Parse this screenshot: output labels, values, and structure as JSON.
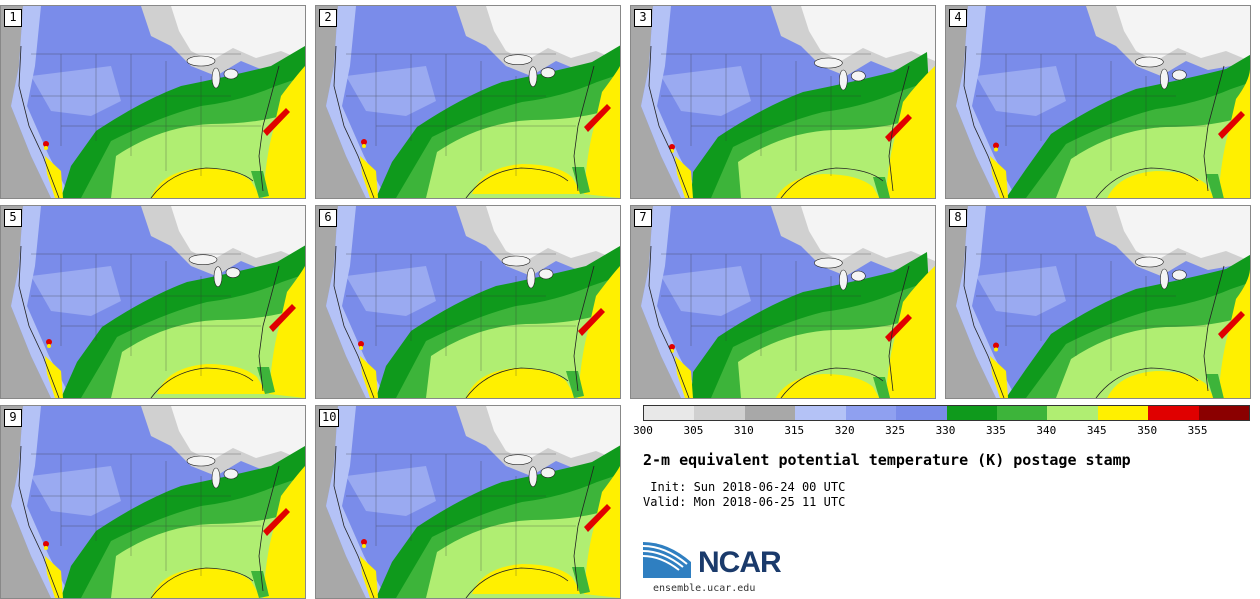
{
  "stamps": [
    {
      "label": "1",
      "variant": 0
    },
    {
      "label": "2",
      "variant": 1
    },
    {
      "label": "3",
      "variant": 2
    },
    {
      "label": "4",
      "variant": 3
    },
    {
      "label": "5",
      "variant": 1
    },
    {
      "label": "6",
      "variant": 0
    },
    {
      "label": "7",
      "variant": 2
    },
    {
      "label": "8",
      "variant": 3
    },
    {
      "label": "9",
      "variant": 0
    },
    {
      "label": "10",
      "variant": 1
    }
  ],
  "legend": {
    "ticks": [
      "300",
      "305",
      "310",
      "315",
      "320",
      "325",
      "330",
      "335",
      "340",
      "345",
      "350",
      "355"
    ],
    "colors": [
      "#e8e8e8",
      "#d0d0d0",
      "#a8a8a8",
      "#b4c2f6",
      "#8fa0f0",
      "#7a8cea",
      "#0f9a1c",
      "#3db43a",
      "#b0ee72",
      "#fff000",
      "#e00000",
      "#8b0000"
    ]
  },
  "map_colors": {
    "gray_ocean": "#a8a8a8",
    "lavender": "#b4c2f6",
    "blue": "#7a8cea",
    "dark_green": "#0f9a1c",
    "green": "#3db43a",
    "light_green": "#b0ee72",
    "yellow": "#fff000",
    "red": "#e00000",
    "canada_white": "#f4f4f4",
    "canada_gray": "#d0d0d0"
  },
  "title": "2-m equivalent potential temperature (K) postage stamp",
  "init": " Init: Sun 2018-06-24 00 UTC",
  "valid": "Valid: Mon 2018-06-25 11 UTC",
  "logo": {
    "name": "NCAR",
    "url_text": "ensemble.ucar.edu"
  }
}
